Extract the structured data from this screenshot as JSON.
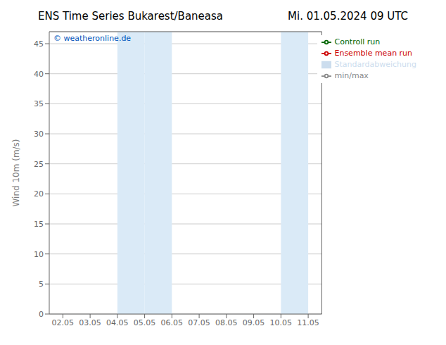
{
  "chart_data": {
    "type": "line",
    "title": "ENS Time Series Bukarest/Baneasa",
    "subtitle": "Mi. 01.05.2024 09 UTC",
    "y_label": "Wind 10m (m/s)",
    "annotations": [
      {
        "text": "© weatheronline.de",
        "color": "#0055bb"
      }
    ],
    "categories": [
      "02.05",
      "03.05",
      "04.05",
      "05.05",
      "06.05",
      "07.05",
      "08.05",
      "09.05",
      "10.05",
      "11.05"
    ],
    "series": [
      {
        "name": "min/max",
        "type": "line",
        "color": "#888888",
        "values": [
          null,
          null,
          null,
          null,
          null,
          null,
          null,
          null,
          null,
          null
        ]
      },
      {
        "name": "Standardabweichung",
        "type": "area",
        "color": "#ccddee",
        "values": [
          null,
          null,
          null,
          null,
          null,
          null,
          null,
          null,
          null,
          null
        ]
      },
      {
        "name": "Ensemble mean run",
        "type": "line",
        "color": "#cc0000",
        "values": [
          null,
          null,
          null,
          null,
          null,
          null,
          null,
          null,
          null,
          null
        ]
      },
      {
        "name": "Controll run",
        "type": "line",
        "color": "#006600",
        "values": [
          null,
          null,
          null,
          null,
          null,
          null,
          null,
          null,
          null,
          null
        ]
      }
    ],
    "shaded_regions": [
      {
        "x_start": "04.05",
        "x_end": "05.05",
        "color": "#daeaf7"
      },
      {
        "x_start": "05.05",
        "x_end": "06.05",
        "color": "#daeaf7"
      },
      {
        "x_start": "10.05",
        "x_end": "11.05",
        "color": "#daeaf7"
      }
    ],
    "ylim": [
      0,
      47
    ],
    "yticks": [
      0,
      5,
      10,
      15,
      20,
      25,
      30,
      35,
      40,
      45
    ],
    "grid": true,
    "legend": "upper right"
  }
}
